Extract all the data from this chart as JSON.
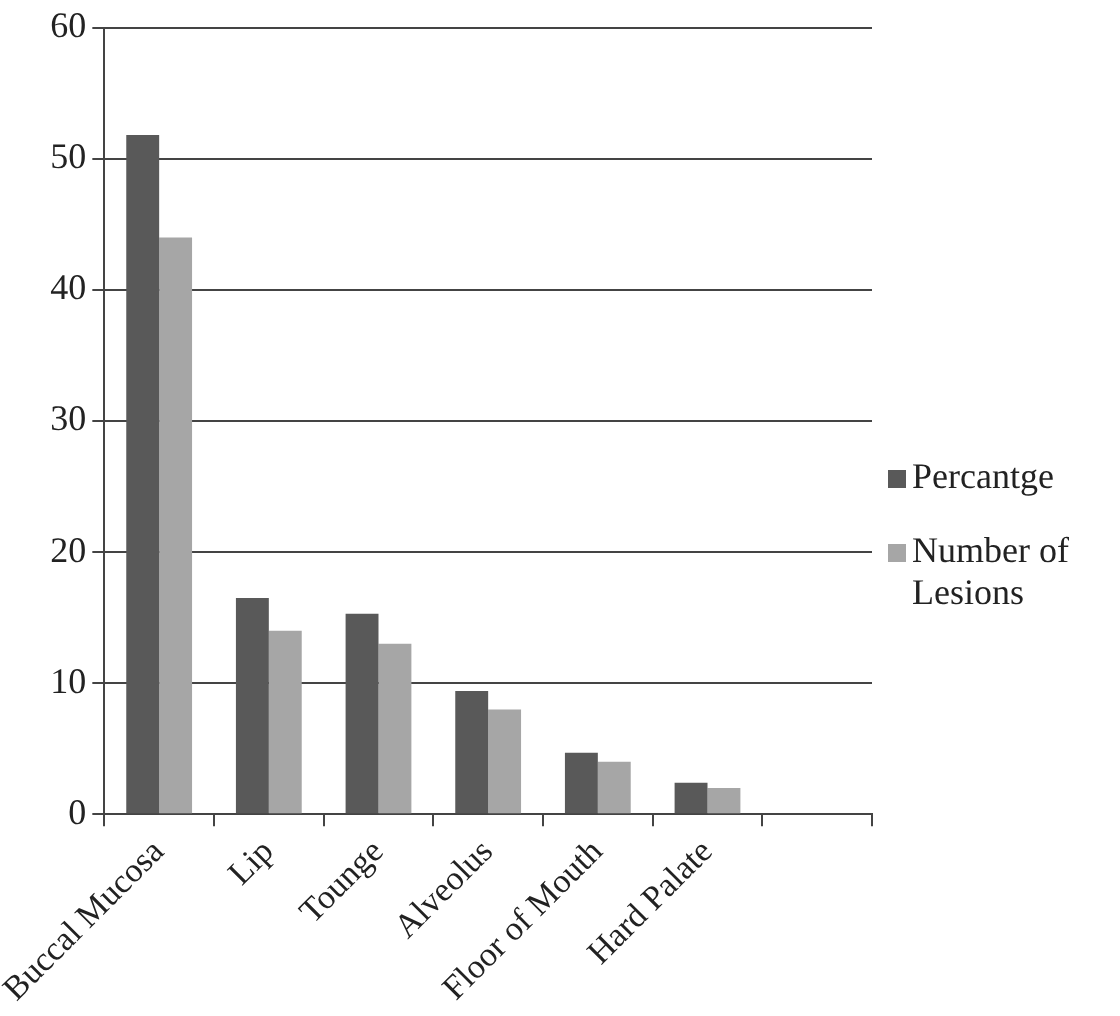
{
  "chart_data": {
    "type": "bar",
    "categories": [
      "Buccal Mucosa",
      "Lip",
      "Tounge",
      "Alveolus",
      "Floor of Mouth",
      "Hard Palate",
      null
    ],
    "series": [
      {
        "name": "Percantge",
        "color": "#595959",
        "values": [
          51.8,
          16.5,
          15.3,
          9.4,
          4.7,
          2.4,
          null
        ]
      },
      {
        "name": "Number of Lesions",
        "color": "#a6a6a6",
        "values": [
          44,
          14,
          13,
          8,
          4,
          2,
          null
        ]
      }
    ],
    "ylim": [
      0,
      60
    ],
    "yticks": [
      0,
      10,
      20,
      30,
      40,
      50,
      60
    ],
    "grid": "y",
    "legend": "right"
  }
}
